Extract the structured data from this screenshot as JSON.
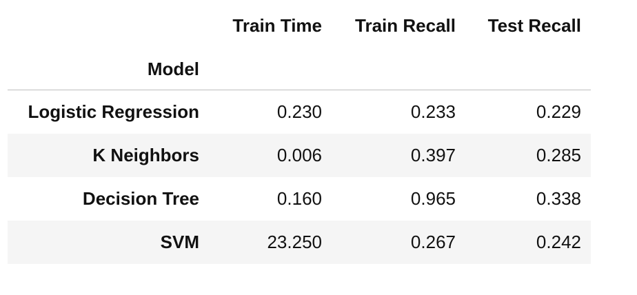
{
  "table": {
    "index_name": "Model",
    "columns": [
      "Train Time",
      "Train Recall",
      "Test Recall"
    ],
    "rows": [
      {
        "model": "Logistic Regression",
        "train_time": "0.230",
        "train_recall": "0.233",
        "test_recall": "0.229"
      },
      {
        "model": "K Neighbors",
        "train_time": "0.006",
        "train_recall": "0.397",
        "test_recall": "0.285"
      },
      {
        "model": "Decision Tree",
        "train_time": "0.160",
        "train_recall": "0.965",
        "test_recall": "0.338"
      },
      {
        "model": "SVM",
        "train_time": "23.250",
        "train_recall": "0.267",
        "test_recall": "0.242"
      }
    ]
  },
  "colors": {
    "stripe": "#f5f5f5",
    "header_rule": "#bdbdbd",
    "text": "#111111"
  }
}
